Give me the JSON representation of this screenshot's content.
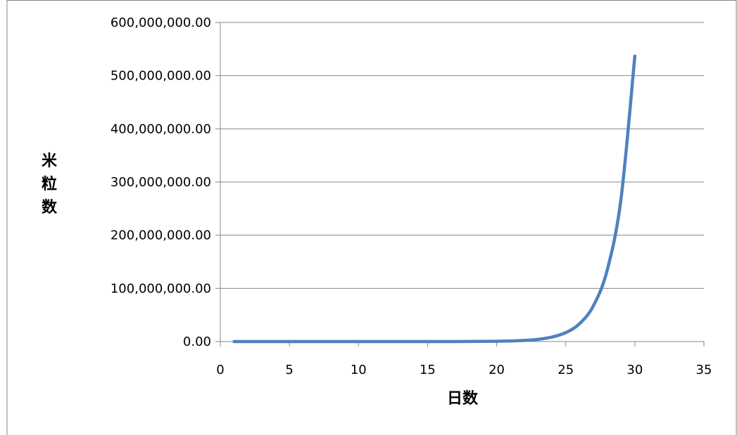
{
  "chart_data": {
    "type": "line",
    "title": "",
    "xlabel": "日数",
    "ylabel": "米粒数",
    "xlim": [
      0,
      35
    ],
    "ylim": [
      0,
      600000000
    ],
    "x_ticks": [
      0,
      5,
      10,
      15,
      20,
      25,
      30,
      35
    ],
    "y_ticks": [
      0,
      100000000,
      200000000,
      300000000,
      400000000,
      500000000,
      600000000
    ],
    "x_tick_labels": [
      "0",
      "5",
      "10",
      "15",
      "20",
      "25",
      "30",
      "35"
    ],
    "y_tick_labels": [
      "0.00",
      "100,000,000.00",
      "200,000,000.00",
      "300,000,000.00",
      "400,000,000.00",
      "500,000,000.00",
      "600,000,000.00"
    ],
    "grid": "horizontal",
    "legend": "none",
    "line_color": "#4f81bd",
    "series": [
      {
        "x": [
          1,
          2,
          3,
          4,
          5,
          6,
          7,
          8,
          9,
          10,
          11,
          12,
          13,
          14,
          15,
          16,
          17,
          18,
          19,
          20,
          21,
          22,
          23,
          24,
          25,
          26,
          27,
          28,
          29,
          30
        ],
        "values": [
          1,
          2,
          4,
          8,
          16,
          32,
          64,
          128,
          256,
          512,
          1024,
          2048,
          4096,
          8192,
          16384,
          32768,
          65536,
          131072,
          262144,
          524288,
          1048576,
          2097152,
          4194304,
          8388608,
          16777216,
          33554432,
          67108864,
          134217728,
          268435456,
          536870912
        ]
      }
    ]
  }
}
